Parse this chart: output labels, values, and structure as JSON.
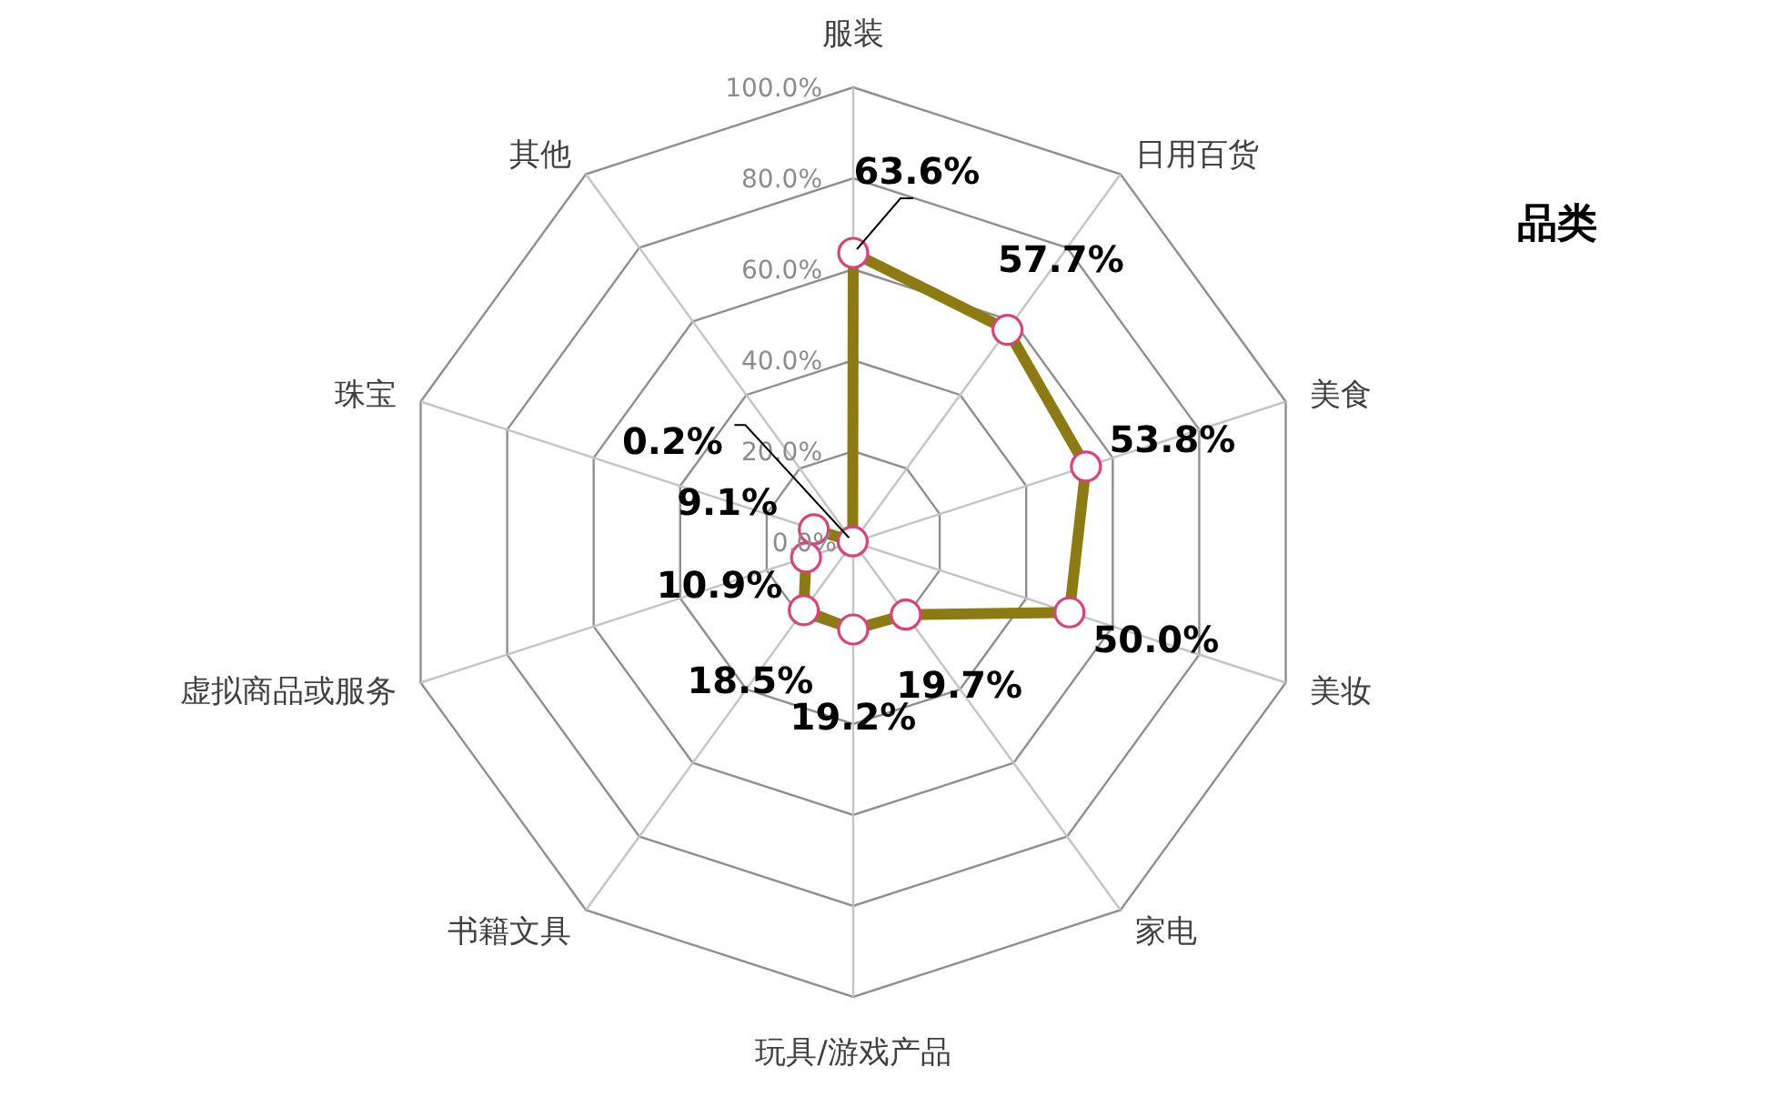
{
  "chart_data": {
    "type": "radar",
    "title": "品类",
    "categories": [
      "服装",
      "日用百货",
      "美食",
      "美妆",
      "家电",
      "玩具/游戏产品",
      "书籍文具",
      "虚拟商品或服务",
      "珠宝",
      "其他"
    ],
    "series": [
      {
        "color": "#8c7b12",
        "values": [
          63.6,
          57.7,
          53.8,
          50.0,
          19.7,
          19.2,
          18.5,
          10.9,
          9.1,
          0.2
        ],
        "value_labels": [
          "63.6%",
          "57.7%",
          "53.8%",
          "50.0%",
          "19.7%",
          "19.2%",
          "18.5%",
          "10.9%",
          "9.1%",
          "0.2%"
        ]
      }
    ],
    "ylim": [
      0,
      100
    ],
    "yticks": [
      {
        "value": 0,
        "label": "0.0%"
      },
      {
        "value": 20,
        "label": "20.0%"
      },
      {
        "value": 40,
        "label": "40.0%"
      },
      {
        "value": 60,
        "label": "60.0%"
      },
      {
        "value": 80,
        "label": "80.0%"
      },
      {
        "value": 100,
        "label": "100.0%"
      }
    ],
    "grid": true,
    "marker": "circle",
    "line_style": "solid"
  }
}
